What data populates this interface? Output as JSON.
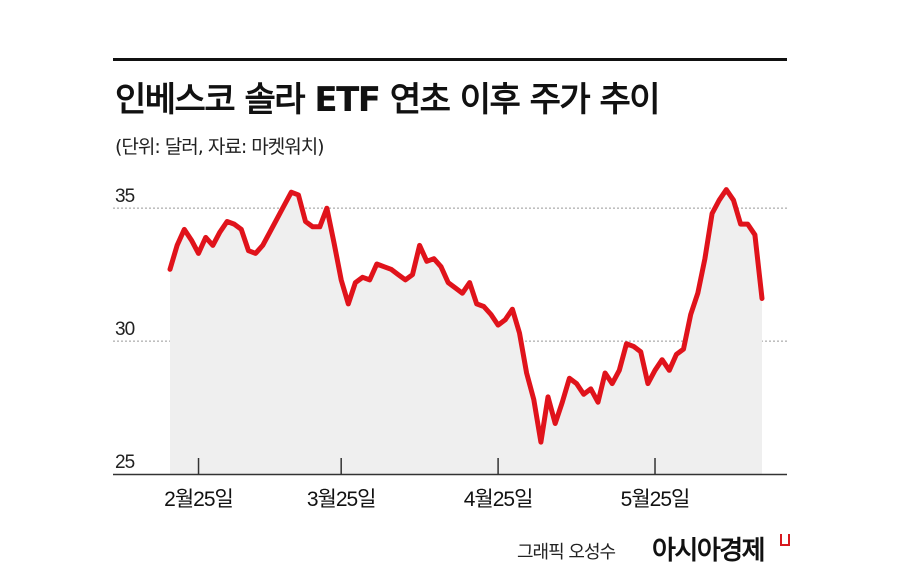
{
  "title": "인베스코 솔라 ETF 연초 이후 주가 추이",
  "subtitle": "(단위: 달러, 자료: 마켓워치)",
  "credit": "그래픽 오성수",
  "brand": "아시아경제",
  "colors": {
    "line": "#e0131b",
    "area": "#efefef",
    "grid": "#999999",
    "axis": "#333333"
  },
  "chart_data": {
    "type": "area",
    "title": "인베스코 솔라 ETF 연초 이후 주가 추이",
    "xlabel": "",
    "ylabel": "",
    "yticks": [
      "25",
      "30",
      "35"
    ],
    "ylim": [
      25,
      37
    ],
    "xticks": [
      {
        "label": "2월25일",
        "x": 4
      },
      {
        "label": "3월25일",
        "x": 24
      },
      {
        "label": "4월25일",
        "x": 46
      },
      {
        "label": "5월25일",
        "x": 68
      }
    ],
    "grid": "horizontal dotted",
    "series": [
      {
        "values": [
          32.7,
          33.6,
          34.2,
          33.8,
          33.3,
          33.9,
          33.6,
          34.1,
          34.5,
          34.4,
          34.2,
          33.4,
          33.3,
          33.6,
          34.1,
          34.6,
          35.1,
          35.6,
          35.5,
          34.5,
          34.3,
          34.3,
          35.0,
          33.7,
          32.3,
          31.4,
          32.2,
          32.4,
          32.3,
          32.9,
          32.8,
          32.7,
          32.5,
          32.3,
          32.5,
          33.6,
          33.0,
          33.1,
          32.8,
          32.2,
          32.0,
          31.8,
          32.2,
          31.4,
          31.3,
          31.0,
          30.6,
          30.8,
          31.2,
          30.3,
          28.8,
          27.8,
          26.2,
          27.9,
          26.9,
          27.7,
          28.6,
          28.4,
          28.0,
          28.2,
          27.7,
          28.8,
          28.4,
          28.9,
          29.9,
          29.8,
          29.6,
          28.4,
          28.9,
          29.3,
          28.9,
          29.5,
          29.7,
          31.0,
          31.8,
          33.1,
          34.8,
          35.3,
          35.7,
          35.3,
          34.4,
          34.4,
          34.0,
          31.6
        ]
      }
    ]
  }
}
